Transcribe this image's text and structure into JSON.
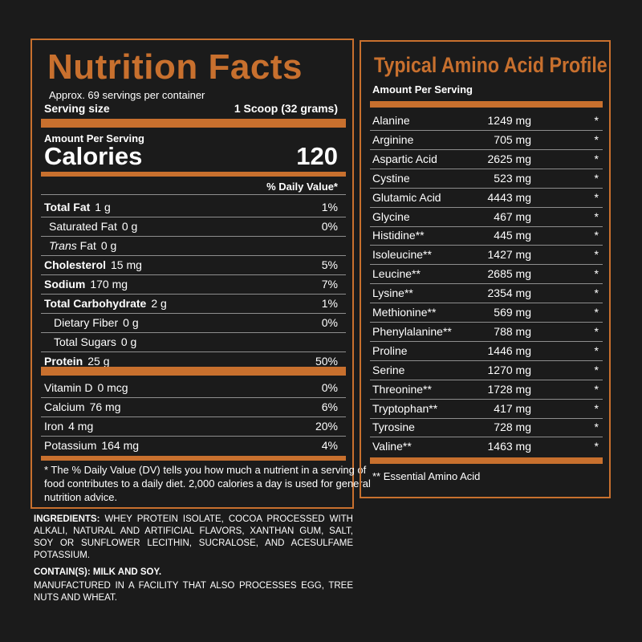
{
  "nutrition": {
    "title": "Nutrition Facts",
    "servings_per_container": "Approx. 69 servings per container",
    "serving_size_label": "Serving size",
    "serving_size_value": "1 Scoop (32 grams)",
    "amount_per_serving": "Amount Per Serving",
    "calories_label": "Calories",
    "calories_value": "120",
    "daily_value_header": "% Daily Value*",
    "nutrients": [
      {
        "name": "Total Fat",
        "amount": "1 g",
        "dv": "1%"
      },
      {
        "name": "Saturated Fat",
        "amount": "0 g",
        "dv": "0%"
      },
      {
        "name_italic": "Trans",
        "name_rest": " Fat",
        "amount": "0 g",
        "dv": ""
      },
      {
        "name": "Cholesterol",
        "amount": "15 mg",
        "dv": "5%"
      },
      {
        "name": "Sodium",
        "amount": "170 mg",
        "dv": "7%"
      },
      {
        "name": "Total Carbohydrate",
        "amount": "2 g",
        "dv": "1%"
      },
      {
        "name": "Dietary Fiber",
        "amount": "0 g",
        "dv": "0%"
      },
      {
        "name": "Total Sugars",
        "amount": "0 g",
        "dv": ""
      },
      {
        "name": "Protein",
        "amount": "25 g",
        "dv": "50%"
      }
    ],
    "minerals": [
      {
        "name": "Vitamin D",
        "amount": "0 mcg",
        "dv": "0%"
      },
      {
        "name": "Calcium",
        "amount": "76 mg",
        "dv": "6%"
      },
      {
        "name": "Iron",
        "amount": "4 mg",
        "dv": "20%"
      },
      {
        "name": "Potassium",
        "amount": "164 mg",
        "dv": "4%"
      }
    ],
    "footnote_1": "* The % Daily Value (DV) tells you how much a nutrient in a serving of",
    "footnote_2": "food contributes to a daily diet. 2,000 calories a day is used for general",
    "footnote_3": "nutrition advice."
  },
  "ingredients": {
    "label": "INGREDIENTS:",
    "text": "WHEY PROTEIN ISOLATE, COCOA PROCESSED WITH ALKALI, NATURAL AND ARTIFICIAL FLAVORS, XANTHAN GUM, SALT, SOY OR SUNFLOWER LECITHIN, SUCRALOSE, AND ACESULFAME POTASSIUM.",
    "contains": "CONTAIN(S): MILK AND SOY.",
    "facility": "MANUFACTURED IN A FACILITY THAT ALSO PROCESSES EGG, TREE NUTS AND WHEAT."
  },
  "amino": {
    "title": "Typical Amino Acid Profile",
    "amount_per_serving": "Amount Per Serving",
    "acids": [
      {
        "name": "Alanine",
        "amount": "1249 mg",
        "dv": "*"
      },
      {
        "name": "Arginine",
        "amount": "705 mg",
        "dv": "*"
      },
      {
        "name": "Aspartic Acid",
        "amount": "2625 mg",
        "dv": "*"
      },
      {
        "name": "Cystine",
        "amount": "523 mg",
        "dv": "*"
      },
      {
        "name": "Glutamic Acid",
        "amount": "4443 mg",
        "dv": "*"
      },
      {
        "name": "Glycine",
        "amount": "467 mg",
        "dv": "*"
      },
      {
        "name": "Histidine**",
        "amount": "445 mg",
        "dv": "*"
      },
      {
        "name": "Isoleucine**",
        "amount": "1427 mg",
        "dv": "*"
      },
      {
        "name": "Leucine**",
        "amount": "2685 mg",
        "dv": "*"
      },
      {
        "name": "Lysine**",
        "amount": "2354 mg",
        "dv": "*"
      },
      {
        "name": "Methionine**",
        "amount": "569 mg",
        "dv": "*"
      },
      {
        "name": "Phenylalanine**",
        "amount": "788 mg",
        "dv": "*"
      },
      {
        "name": "Proline",
        "amount": "1446 mg",
        "dv": "*"
      },
      {
        "name": "Serine",
        "amount": "1270 mg",
        "dv": "*"
      },
      {
        "name": "Threonine**",
        "amount": "1728 mg",
        "dv": "*"
      },
      {
        "name": "Tryptophan**",
        "amount": "417 mg",
        "dv": "*"
      },
      {
        "name": "Tyrosine",
        "amount": "728 mg",
        "dv": "*"
      },
      {
        "name": "Valine**",
        "amount": "1463 mg",
        "dv": "*"
      }
    ],
    "footnote": "** Essential Amino Acid"
  },
  "colors": {
    "accent": "#c8702e",
    "background": "#1b1b1b",
    "text": "#ffffff"
  }
}
